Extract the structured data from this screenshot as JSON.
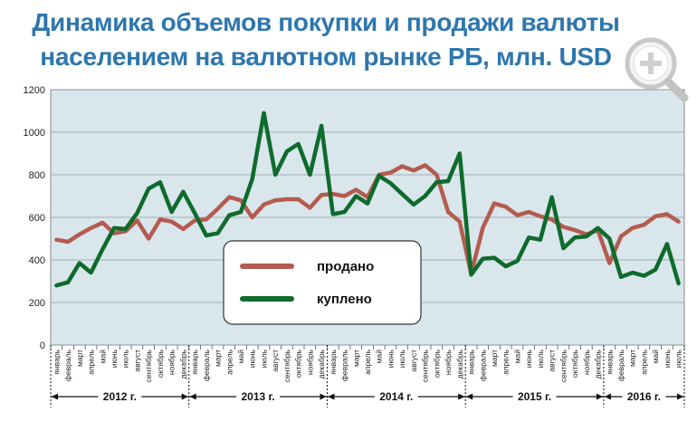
{
  "header": {
    "title_line1": "Динамика объемов покупки и продажи валюты",
    "title_line2": "населением на валютном рынке РБ, млн. USD"
  },
  "zoom_icon": "zoom-in-magnifier-icon",
  "colors": {
    "plot_bg": "#d9e6ec",
    "sold": "#b45b50",
    "bought": "#0e6b2c",
    "title": "#2e77ad"
  },
  "chart_data": {
    "type": "line",
    "title": "Динамика объемов покупки и продажи валюты населением на валютном рынке РБ, млн. USD",
    "ylim": [
      0,
      1200
    ],
    "yticks": [
      "0",
      "200",
      "400",
      "600",
      "800",
      "1000",
      "1200"
    ],
    "grid": true,
    "legend_position": "center-left",
    "categories": [
      "январь",
      "февраль",
      "март",
      "апрель",
      "май",
      "июнь",
      "июль",
      "август",
      "сентябрь",
      "октябрь",
      "ноябрь",
      "декабрь",
      "январь",
      "февраль",
      "март",
      "апрель",
      "май",
      "июнь",
      "июль",
      "август",
      "сентябрь",
      "октябрь",
      "ноябрь",
      "декабрь",
      "январь",
      "февраль",
      "март",
      "апрель",
      "май",
      "июнь",
      "июль",
      "август",
      "сентябрь",
      "октябрь",
      "ноябрь",
      "декабрь",
      "январь",
      "февраль",
      "март",
      "апрель",
      "май",
      "июнь",
      "июль",
      "август",
      "сентябрь",
      "октябрь",
      "ноябрь",
      "декабрь",
      "январь",
      "февраль",
      "март",
      "апрель",
      "май",
      "июнь",
      "июль"
    ],
    "years": [
      {
        "label": "2012 г.",
        "start": 0,
        "count": 12
      },
      {
        "label": "2013 г.",
        "start": 12,
        "count": 12
      },
      {
        "label": "2014 г.",
        "start": 24,
        "count": 12
      },
      {
        "label": "2015 г.",
        "start": 36,
        "count": 12
      },
      {
        "label": "2016 г.",
        "start": 48,
        "count": 7
      }
    ],
    "series": [
      {
        "name": "продано",
        "color": "#b45b50",
        "values": [
          495,
          485,
          520,
          550,
          575,
          525,
          535,
          585,
          500,
          590,
          580,
          545,
          585,
          590,
          640,
          695,
          680,
          600,
          660,
          680,
          685,
          685,
          645,
          705,
          710,
          700,
          730,
          695,
          800,
          810,
          840,
          820,
          845,
          800,
          625,
          580,
          335,
          550,
          665,
          650,
          610,
          625,
          605,
          590,
          555,
          540,
          520,
          540,
          385,
          510,
          550,
          565,
          605,
          615,
          580
        ]
      },
      {
        "name": "куплено",
        "color": "#0e6b2c",
        "values": [
          280,
          295,
          385,
          340,
          450,
          550,
          545,
          620,
          735,
          765,
          625,
          720,
          620,
          515,
          525,
          610,
          625,
          780,
          1090,
          800,
          910,
          945,
          800,
          1030,
          615,
          625,
          700,
          665,
          795,
          760,
          710,
          660,
          700,
          765,
          770,
          900,
          330,
          405,
          410,
          370,
          395,
          505,
          495,
          695,
          455,
          505,
          510,
          550,
          500,
          320,
          340,
          325,
          355,
          475,
          290
        ]
      }
    ]
  }
}
